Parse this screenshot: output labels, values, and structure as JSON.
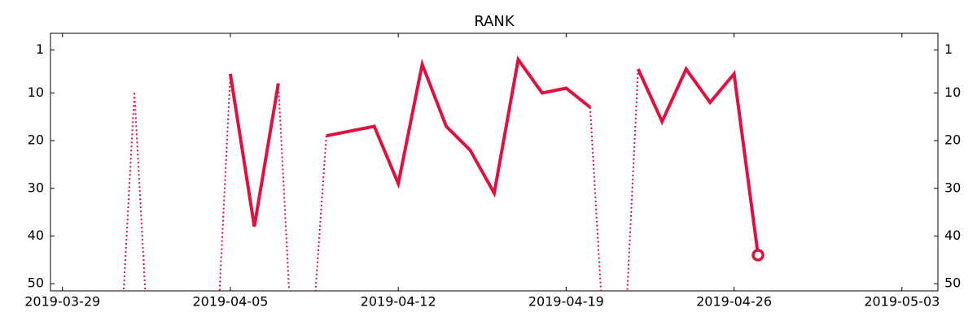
{
  "chart_data": {
    "type": "line",
    "title": "RANK",
    "x": [
      "2019-03-31",
      "2019-04-01",
      "2019-04-02",
      "2019-04-03",
      "2019-04-04",
      "2019-04-05",
      "2019-04-06",
      "2019-04-07",
      "2019-04-08",
      "2019-04-09",
      "2019-04-10",
      "2019-04-11",
      "2019-04-12",
      "2019-04-13",
      "2019-04-14",
      "2019-04-15",
      "2019-04-16",
      "2019-04-17",
      "2019-04-18",
      "2019-04-19",
      "2019-04-20",
      "2019-04-21",
      "2019-04-22",
      "2019-04-23",
      "2019-04-24",
      "2019-04-25",
      "2019-04-26",
      "2019-04-27"
    ],
    "series": [
      {
        "name": "RANK",
        "color": "#e3103f",
        "values": [
          null,
          10,
          null,
          null,
          null,
          6,
          38,
          8,
          null,
          19,
          18,
          17,
          29,
          4,
          17,
          22,
          31,
          3,
          10,
          9,
          13,
          null,
          5,
          16,
          5,
          12,
          6,
          44
        ]
      }
    ],
    "xlim": [
      "2019-03-28T12:00Z",
      "2019-05-04T12:00Z"
    ],
    "xticks": [
      "2019-03-29",
      "2019-04-05",
      "2019-04-12",
      "2019-04-19",
      "2019-04-26",
      "2019-05-03"
    ],
    "ylim": [
      51.5,
      -2.5
    ],
    "yticks": [
      1,
      10,
      20,
      30,
      40,
      50
    ],
    "y_inverted": true,
    "mirror_y_axis": true,
    "end_marker": true
  }
}
